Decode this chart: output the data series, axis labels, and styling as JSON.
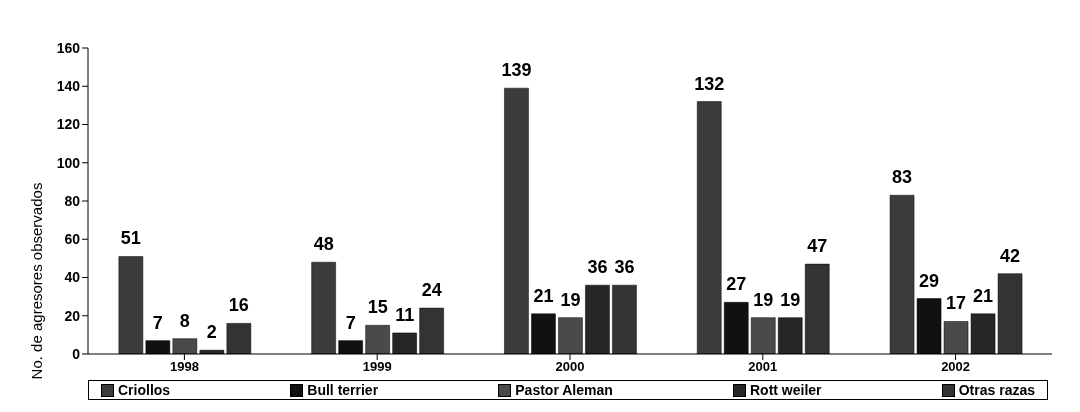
{
  "chart_data": {
    "type": "bar",
    "ylabel": "No. de agresores observados",
    "categories": [
      "1998",
      "1999",
      "2000",
      "2001",
      "2002"
    ],
    "series": [
      {
        "name": "Criollos",
        "color": "#3c3c3c",
        "values": [
          51,
          48,
          139,
          132,
          83
        ]
      },
      {
        "name": "Bull terrier",
        "color": "#111111",
        "values": [
          7,
          7,
          21,
          27,
          29
        ]
      },
      {
        "name": "Pastor Aleman",
        "color": "#4a4a4a",
        "values": [
          8,
          15,
          19,
          19,
          17
        ]
      },
      {
        "name": "Rott weiler",
        "color": "#262626",
        "values": [
          2,
          11,
          36,
          19,
          21
        ]
      },
      {
        "name": "Otras razas",
        "color": "#333333",
        "values": [
          16,
          24,
          36,
          47,
          42
        ]
      }
    ],
    "ylim": [
      0,
      160
    ],
    "yticks": [
      0,
      20,
      40,
      60,
      80,
      100,
      120,
      140,
      160
    ],
    "legend": "bottom",
    "data_labels": true
  }
}
